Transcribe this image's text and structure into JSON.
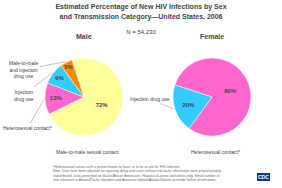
{
  "chart_data": {
    "type": "pie",
    "title": "Estimated Percentage of New HIV Infections by Sex\nand Transmission Category—United States, 2006",
    "subtitle": "N = 54,230",
    "data_labels": true,
    "series": [
      {
        "name": "Male",
        "categories": [
          "Male-to-male sexual contact",
          "Heterosexual contact*",
          "Injection\ndrug use",
          "Male-to-male\nand injection\ndrug use"
        ],
        "values": [
          72,
          13,
          9,
          5
        ],
        "value_labels": [
          "72%",
          "13%",
          "9%",
          "5%"
        ],
        "colors": [
          "#ffff99",
          "#ff66cc",
          "#33ccff",
          "#ff8800"
        ]
      },
      {
        "name": "Female",
        "categories": [
          "Heterosexual contact*",
          "Injection drug use"
        ],
        "values": [
          80,
          20
        ],
        "value_labels": [
          "80%",
          "20%"
        ],
        "colors": [
          "#ff66cc",
          "#33ccff"
        ]
      }
    ],
    "annotations": [
      "*Heterosexual contact with a person known to have, or to be at risk for, HIV infection.\nNote: Data have been adjusted for reporting delay and cases without risk factor information were proportionately\nredistributed. Data presented on blacks/African Americans, Hispanics/Latinos and whites only. Small number of\nnew infections in Asians/Pacific Islanders and American Indians/Alaska Natives preclude further stratification.",
      "CDC"
    ]
  }
}
